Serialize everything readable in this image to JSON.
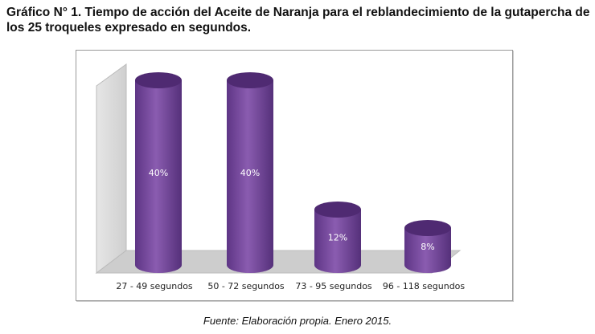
{
  "title": "Gráfico N° 1. Tiempo de acción del Aceite de Naranja para el reblandecimiento de la gutapercha de los 25 troqueles expresado en segundos.",
  "source": "Fuente: Elaboración propia. Enero 2015.",
  "chart_data": {
    "type": "bar",
    "style": "3d-cylinder",
    "categories": [
      "27 - 49 segundos",
      "50 - 72 segundos",
      "73 - 95 segundos",
      "96 - 118 segundos"
    ],
    "values": [
      40,
      40,
      12,
      8
    ],
    "data_labels": [
      "40%",
      "40%",
      "12%",
      "8%"
    ],
    "unit": "%",
    "ylim": [
      0,
      40
    ],
    "grid": false,
    "legend": "none",
    "colors": {
      "bar": "#7a4e9e",
      "bar_dark": "#4f2a72",
      "wall": "#d8d8d8",
      "floor": "#c8c8c8"
    }
  }
}
